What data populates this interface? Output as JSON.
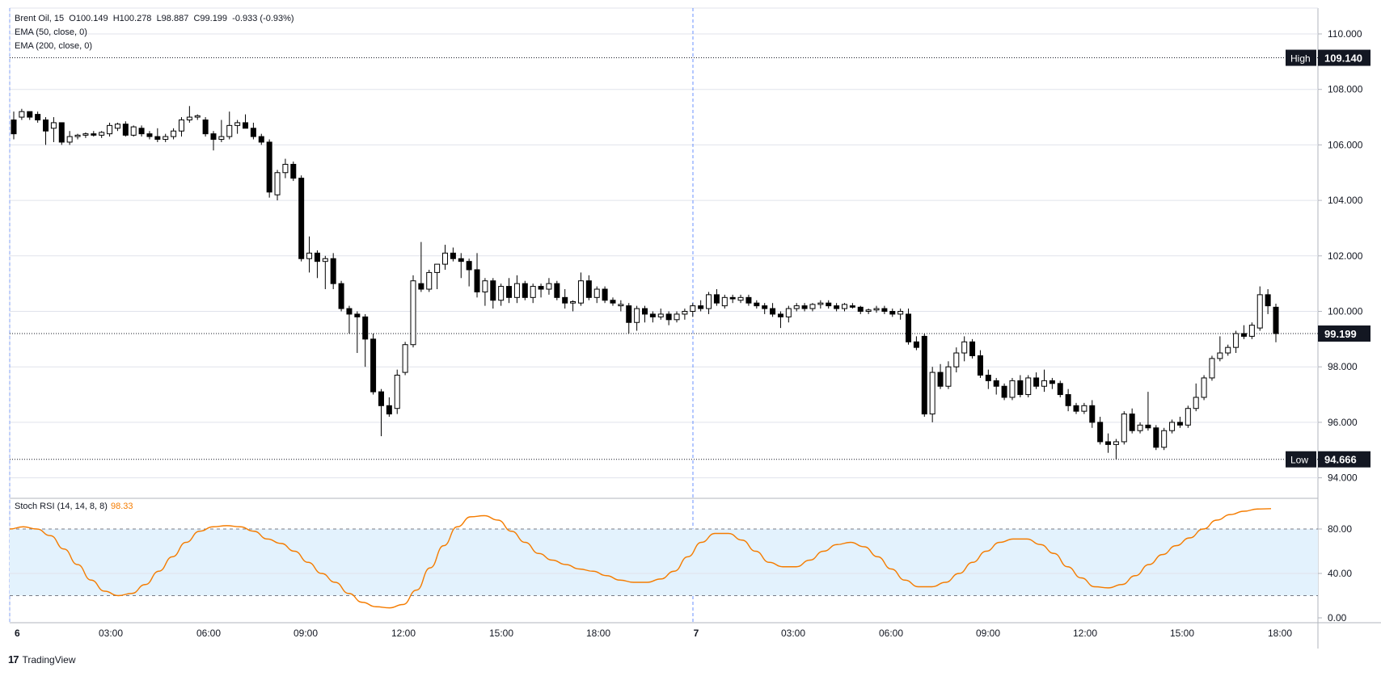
{
  "header": {
    "symbol": "Brent Oil, 15",
    "open": "O100.149",
    "high": "H100.278",
    "low": "L98.887",
    "close": "C99.199",
    "change": "-0.933 (-0.93%)",
    "ema50": "EMA (50, close, 0)",
    "ema200": "EMA (200, close, 0)"
  },
  "rsi_legend": {
    "label": "Stoch RSI (14, 14, 8, 8)",
    "value": "98.33"
  },
  "branding": {
    "logo": "17",
    "name": "TradingView"
  },
  "markers": {
    "high_label": "High",
    "high_value": "109.140",
    "low_label": "Low",
    "low_value": "94.666",
    "last_value": "99.199"
  },
  "colors": {
    "up": "#ffffff",
    "down": "#000000",
    "rsi_line": "#f57c00",
    "rsi_band": "#e3f2fd",
    "grid": "#e0e3eb"
  },
  "chart_data": [
    {
      "type": "candlestick",
      "title": "Brent Oil, 15",
      "ylim": [
        93,
        111
      ],
      "y_ticks": [
        "110.000",
        "108.000",
        "106.000",
        "104.000",
        "102.000",
        "100.000",
        "98.000",
        "96.000",
        "94.000"
      ],
      "x_ticks": [
        "6",
        "03:00",
        "06:00",
        "09:00",
        "12:00",
        "15:00",
        "18:00",
        "7",
        "03:00",
        "06:00",
        "09:00",
        "12:00",
        "15:00",
        "18:00"
      ],
      "high_line": 109.14,
      "low_line": 94.666,
      "last_price": 99.199,
      "candles": [
        [
          106.9,
          107.2,
          106.2,
          106.4
        ],
        [
          107.0,
          107.3,
          106.9,
          107.2
        ],
        [
          107.2,
          107.2,
          106.9,
          107.0
        ],
        [
          107.1,
          107.2,
          106.8,
          106.9
        ],
        [
          106.9,
          107.0,
          106.0,
          106.5
        ],
        [
          106.6,
          107.0,
          106.1,
          106.8
        ],
        [
          106.8,
          106.8,
          106.0,
          106.1
        ],
        [
          106.1,
          106.5,
          106.0,
          106.3
        ],
        [
          106.3,
          106.4,
          106.2,
          106.35
        ],
        [
          106.35,
          106.45,
          106.25,
          106.4
        ],
        [
          106.4,
          106.5,
          106.3,
          106.35
        ],
        [
          106.35,
          106.5,
          106.25,
          106.45
        ],
        [
          106.4,
          106.8,
          106.3,
          106.7
        ],
        [
          106.6,
          106.8,
          106.5,
          106.75
        ],
        [
          106.75,
          106.85,
          106.3,
          106.35
        ],
        [
          106.35,
          106.7,
          106.3,
          106.65
        ],
        [
          106.6,
          106.7,
          106.3,
          106.4
        ],
        [
          106.4,
          106.5,
          106.2,
          106.3
        ],
        [
          106.3,
          106.6,
          106.1,
          106.2
        ],
        [
          106.2,
          106.4,
          106.1,
          106.3
        ],
        [
          106.3,
          106.6,
          106.2,
          106.5
        ],
        [
          106.5,
          107.0,
          106.3,
          106.9
        ],
        [
          106.9,
          107.4,
          106.8,
          107.0
        ],
        [
          107.0,
          107.1,
          106.9,
          107.05
        ],
        [
          106.9,
          107.0,
          106.3,
          106.4
        ],
        [
          106.4,
          106.5,
          105.8,
          106.2
        ],
        [
          106.2,
          106.9,
          106.1,
          106.3
        ],
        [
          106.3,
          107.2,
          106.2,
          106.7
        ],
        [
          106.7,
          106.9,
          106.4,
          106.8
        ],
        [
          106.8,
          107.1,
          106.6,
          106.6
        ],
        [
          106.6,
          106.8,
          106.2,
          106.3
        ],
        [
          106.3,
          106.4,
          106.0,
          106.1
        ],
        [
          106.1,
          106.2,
          104.1,
          104.3
        ],
        [
          104.2,
          105.1,
          104.0,
          105.0
        ],
        [
          105.0,
          105.5,
          104.8,
          105.3
        ],
        [
          105.3,
          105.4,
          104.7,
          104.8
        ],
        [
          104.8,
          104.9,
          101.8,
          101.9
        ],
        [
          101.9,
          102.7,
          101.4,
          102.1
        ],
        [
          102.1,
          102.2,
          101.2,
          101.8
        ],
        [
          101.8,
          102.0,
          100.8,
          101.9
        ],
        [
          101.9,
          102.1,
          100.8,
          101.0
        ],
        [
          101.0,
          101.1,
          100.0,
          100.1
        ],
        [
          100.1,
          100.2,
          99.2,
          99.9
        ],
        [
          99.9,
          100.0,
          98.5,
          99.8
        ],
        [
          99.8,
          99.9,
          98.0,
          99.0
        ],
        [
          99.0,
          99.2,
          97.0,
          97.1
        ],
        [
          97.1,
          97.2,
          95.5,
          96.6
        ],
        [
          96.6,
          96.9,
          96.2,
          96.3
        ],
        [
          96.5,
          97.9,
          96.3,
          97.7
        ],
        [
          97.8,
          98.9,
          97.7,
          98.8
        ],
        [
          98.8,
          101.3,
          98.7,
          101.1
        ],
        [
          101.0,
          102.5,
          100.7,
          100.8
        ],
        [
          100.8,
          101.5,
          100.7,
          101.4
        ],
        [
          101.4,
          101.6,
          100.8,
          101.7
        ],
        [
          101.7,
          102.4,
          101.5,
          102.1
        ],
        [
          102.1,
          102.3,
          101.8,
          101.9
        ],
        [
          101.9,
          102.1,
          101.2,
          101.8
        ],
        [
          101.8,
          101.9,
          100.9,
          101.5
        ],
        [
          101.5,
          102.1,
          100.5,
          100.7
        ],
        [
          100.7,
          101.2,
          100.2,
          101.1
        ],
        [
          101.1,
          101.2,
          100.1,
          100.4
        ],
        [
          100.4,
          101.0,
          100.2,
          100.9
        ],
        [
          100.9,
          101.2,
          100.3,
          100.5
        ],
        [
          100.5,
          101.3,
          100.3,
          101.0
        ],
        [
          101.0,
          101.1,
          100.4,
          100.5
        ],
        [
          100.5,
          101.0,
          100.3,
          100.9
        ],
        [
          100.9,
          101.0,
          100.5,
          100.8
        ],
        [
          100.8,
          101.2,
          100.6,
          101.0
        ],
        [
          101.0,
          101.1,
          100.4,
          100.5
        ],
        [
          100.5,
          100.8,
          100.1,
          100.3
        ],
        [
          100.3,
          100.4,
          100.0,
          100.35
        ],
        [
          100.3,
          101.4,
          100.2,
          101.1
        ],
        [
          101.1,
          101.3,
          100.4,
          100.5
        ],
        [
          100.5,
          100.9,
          100.3,
          100.8
        ],
        [
          100.8,
          100.9,
          100.3,
          100.4
        ],
        [
          100.4,
          100.5,
          100.2,
          100.3
        ],
        [
          100.2,
          100.4,
          100.0,
          100.25
        ],
        [
          100.2,
          100.3,
          99.2,
          99.6
        ],
        [
          99.6,
          100.2,
          99.3,
          100.1
        ],
        [
          100.1,
          100.2,
          99.6,
          99.9
        ],
        [
          99.9,
          100.0,
          99.6,
          99.8
        ],
        [
          99.8,
          100.1,
          99.7,
          99.9
        ],
        [
          99.9,
          100.0,
          99.5,
          99.7
        ],
        [
          99.7,
          100.0,
          99.6,
          99.9
        ],
        [
          99.9,
          100.1,
          99.7,
          100.0
        ],
        [
          100.0,
          100.3,
          99.8,
          100.2
        ],
        [
          100.2,
          100.4,
          100.0,
          100.1
        ],
        [
          100.1,
          100.7,
          99.9,
          100.6
        ],
        [
          100.6,
          100.8,
          100.2,
          100.3
        ],
        [
          100.2,
          100.6,
          100.1,
          100.5
        ],
        [
          100.5,
          100.6,
          100.3,
          100.45
        ],
        [
          100.4,
          100.6,
          100.3,
          100.5
        ],
        [
          100.5,
          100.6,
          100.2,
          100.3
        ],
        [
          100.3,
          100.4,
          100.1,
          100.2
        ],
        [
          100.2,
          100.3,
          99.9,
          100.1
        ],
        [
          100.1,
          100.3,
          99.8,
          99.9
        ],
        [
          99.9,
          100.0,
          99.4,
          99.8
        ],
        [
          99.8,
          100.2,
          99.6,
          100.1
        ],
        [
          100.1,
          100.3,
          100.0,
          100.2
        ],
        [
          100.2,
          100.3,
          100.0,
          100.1
        ],
        [
          100.1,
          100.3,
          100.0,
          100.25
        ],
        [
          100.25,
          100.4,
          100.1,
          100.3
        ],
        [
          100.3,
          100.4,
          100.1,
          100.2
        ],
        [
          100.2,
          100.3,
          100.0,
          100.1
        ],
        [
          100.1,
          100.3,
          100.0,
          100.25
        ],
        [
          100.2,
          100.3,
          100.1,
          100.15
        ],
        [
          100.15,
          100.2,
          99.9,
          100.0
        ],
        [
          100.0,
          100.1,
          99.9,
          100.05
        ],
        [
          100.05,
          100.2,
          99.95,
          100.1
        ],
        [
          100.1,
          100.2,
          99.9,
          100.0
        ],
        [
          100.0,
          100.1,
          99.8,
          99.9
        ],
        [
          99.9,
          100.1,
          99.7,
          100.0
        ],
        [
          99.9,
          100.1,
          98.8,
          98.9
        ],
        [
          98.9,
          99.1,
          98.6,
          98.7
        ],
        [
          99.1,
          99.2,
          96.2,
          96.3
        ],
        [
          96.3,
          98.0,
          96.0,
          97.8
        ],
        [
          97.8,
          98.1,
          97.2,
          97.3
        ],
        [
          97.3,
          98.2,
          97.2,
          98.0
        ],
        [
          98.0,
          98.7,
          97.8,
          98.5
        ],
        [
          98.5,
          99.1,
          98.2,
          98.9
        ],
        [
          98.9,
          99.0,
          98.3,
          98.4
        ],
        [
          98.4,
          98.6,
          97.6,
          97.7
        ],
        [
          97.7,
          97.9,
          97.2,
          97.5
        ],
        [
          97.5,
          97.6,
          97.0,
          97.3
        ],
        [
          97.3,
          97.4,
          96.8,
          96.9
        ],
        [
          96.9,
          97.6,
          96.8,
          97.5
        ],
        [
          97.5,
          97.7,
          96.9,
          97.0
        ],
        [
          97.0,
          97.7,
          96.9,
          97.6
        ],
        [
          97.6,
          97.8,
          97.2,
          97.3
        ],
        [
          97.3,
          97.9,
          97.1,
          97.5
        ],
        [
          97.5,
          97.6,
          97.2,
          97.4
        ],
        [
          97.4,
          97.5,
          96.9,
          97.0
        ],
        [
          97.0,
          97.2,
          96.4,
          96.6
        ],
        [
          96.6,
          96.7,
          96.3,
          96.4
        ],
        [
          96.4,
          96.7,
          96.3,
          96.6
        ],
        [
          96.6,
          96.8,
          95.8,
          96.0
        ],
        [
          96.0,
          96.2,
          95.2,
          95.3
        ],
        [
          95.3,
          95.6,
          94.9,
          95.2
        ],
        [
          95.2,
          95.4,
          94.67,
          95.3
        ],
        [
          95.3,
          96.4,
          95.2,
          96.3
        ],
        [
          96.3,
          96.5,
          95.6,
          95.7
        ],
        [
          95.7,
          96.0,
          95.6,
          95.9
        ],
        [
          95.9,
          97.1,
          95.7,
          95.8
        ],
        [
          95.8,
          95.9,
          95.0,
          95.1
        ],
        [
          95.1,
          95.8,
          95.0,
          95.7
        ],
        [
          95.7,
          96.1,
          95.6,
          96.0
        ],
        [
          96.0,
          96.2,
          95.8,
          95.9
        ],
        [
          95.9,
          96.6,
          95.8,
          96.5
        ],
        [
          96.5,
          97.4,
          96.4,
          96.9
        ],
        [
          96.9,
          97.7,
          96.8,
          97.6
        ],
        [
          97.6,
          98.4,
          97.5,
          98.3
        ],
        [
          98.3,
          99.1,
          98.2,
          98.5
        ],
        [
          98.5,
          98.8,
          98.4,
          98.7
        ],
        [
          98.7,
          99.3,
          98.5,
          99.2
        ],
        [
          99.2,
          99.5,
          99.0,
          99.1
        ],
        [
          99.1,
          99.6,
          99.0,
          99.5
        ],
        [
          99.4,
          100.9,
          99.3,
          100.6
        ],
        [
          100.6,
          100.8,
          99.9,
          100.2
        ],
        [
          100.149,
          100.278,
          98.887,
          99.199
        ]
      ]
    },
    {
      "type": "line",
      "title": "Stoch RSI (14, 14, 8, 8)",
      "ylim": [
        0,
        105
      ],
      "y_ticks": [
        "80.00",
        "40.00",
        "0.00"
      ],
      "band": [
        20,
        80
      ],
      "last_value": 98.33,
      "series": [
        {
          "values": [
            80,
            82,
            80,
            74,
            62,
            48,
            34,
            24,
            20,
            22,
            30,
            42,
            55,
            68,
            78,
            82,
            83,
            82,
            78,
            71,
            67,
            60,
            50,
            40,
            32,
            22,
            14,
            10,
            9,
            12,
            25,
            45,
            65,
            82,
            91,
            92,
            88,
            78,
            68,
            58,
            52,
            48,
            44,
            42,
            38,
            34,
            32,
            32,
            35,
            42,
            55,
            68,
            76,
            76,
            70,
            60,
            50,
            46,
            46,
            52,
            60,
            66,
            68,
            64,
            55,
            44,
            34,
            28,
            28,
            32,
            40,
            50,
            60,
            68,
            71,
            71,
            66,
            58,
            46,
            36,
            28,
            27,
            30,
            38,
            48,
            57,
            65,
            72,
            80,
            88,
            93,
            96,
            98,
            98.33
          ]
        }
      ]
    }
  ]
}
